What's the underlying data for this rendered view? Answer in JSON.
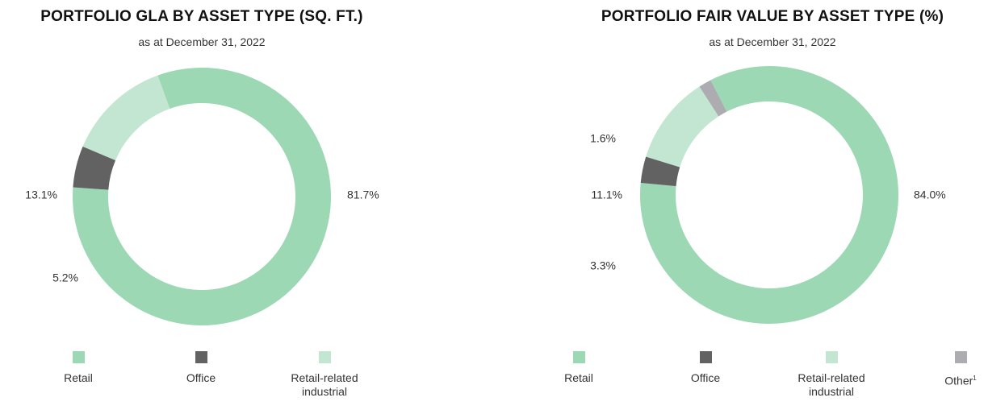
{
  "colors": {
    "retail": "#9cd8b3",
    "office": "#626262",
    "industrial": "#c2e6d1",
    "other": "#adadb1"
  },
  "chart_data": [
    {
      "type": "pie",
      "title": "PORTFOLIO GLA BY ASSET TYPE (SQ. FT.)",
      "subtitle": "as at December 31, 2022",
      "slices": [
        {
          "key": "retail",
          "label": "Retail",
          "value": 81.7,
          "value_label": "81.7%"
        },
        {
          "key": "office",
          "label": "Office",
          "value": 5.2,
          "value_label": "5.2%"
        },
        {
          "key": "industrial",
          "label": "Retail-related industrial",
          "value": 13.1,
          "value_label": "13.1%"
        }
      ],
      "legend": [
        {
          "key": "retail",
          "label": "Retail"
        },
        {
          "key": "office",
          "label": "Office"
        },
        {
          "key": "industrial",
          "label_line1": "Retail-related",
          "label_line2": "industrial"
        }
      ]
    },
    {
      "type": "pie",
      "title": "PORTFOLIO FAIR VALUE BY ASSET TYPE (%)",
      "subtitle": "as at December 31, 2022",
      "slices": [
        {
          "key": "retail",
          "label": "Retail",
          "value": 84.0,
          "value_label": "84.0%"
        },
        {
          "key": "office",
          "label": "Office",
          "value": 3.3,
          "value_label": "3.3%"
        },
        {
          "key": "industrial",
          "label": "Retail-related industrial",
          "value": 11.1,
          "value_label": "11.1%"
        },
        {
          "key": "other",
          "label": "Other",
          "value": 1.6,
          "value_label": "1.6%"
        }
      ],
      "legend": [
        {
          "key": "retail",
          "label": "Retail"
        },
        {
          "key": "office",
          "label": "Office"
        },
        {
          "key": "industrial",
          "label_line1": "Retail-related",
          "label_line2": "industrial"
        },
        {
          "key": "other",
          "label": "Other",
          "footnote": "1"
        }
      ]
    }
  ]
}
